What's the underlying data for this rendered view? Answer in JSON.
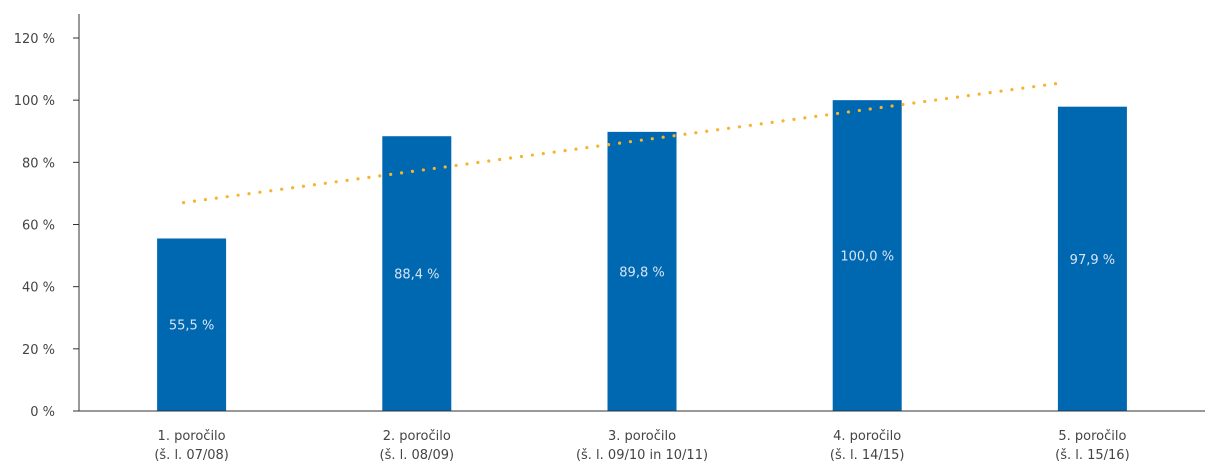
{
  "chart_data": {
    "type": "bar",
    "categories": [
      [
        "1. poročilo",
        "(š. l. 07/08)"
      ],
      [
        "2. poročilo",
        "(š. l. 08/09)"
      ],
      [
        "3. poročilo",
        "(š. l. 09/10 in 10/11)"
      ],
      [
        "4. poročilo",
        "(š. l. 14/15)"
      ],
      [
        "5. poročilo",
        "(š. l. 15/16)"
      ]
    ],
    "values": [
      55.5,
      88.4,
      89.8,
      100.0,
      97.9
    ],
    "data_labels": [
      "55,5 %",
      "88,4 %",
      "89,8 %",
      "100,0 %",
      "97,9 %"
    ],
    "trendline": {
      "type": "linear",
      "style": "dotted"
    },
    "ylim": [
      0,
      120
    ],
    "yticks": [
      0,
      20,
      40,
      60,
      80,
      100,
      120
    ],
    "ytick_labels": [
      "0 %",
      "20 %",
      "40 %",
      "60 %",
      "80 %",
      "100 %",
      "120 %"
    ],
    "title": "",
    "xlabel": "",
    "ylabel": "",
    "grid": false,
    "colors": {
      "bar": "#0067b1",
      "trend": "#f5b52e",
      "axis": "#333333"
    }
  }
}
